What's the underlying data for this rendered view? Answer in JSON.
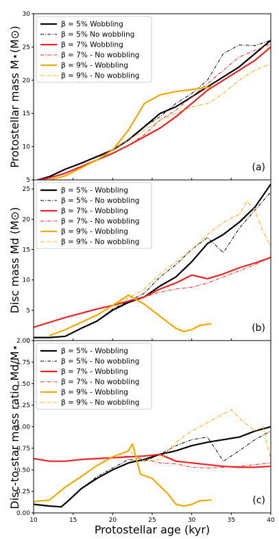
{
  "chart_data": [
    {
      "type": "line",
      "panel_label": "(a)",
      "ylabel": "Protostellar mass M⋆(M⊙)",
      "xlabel": "",
      "xlim": [
        10,
        40
      ],
      "ylim": [
        5,
        30
      ],
      "yticks": [
        "5",
        "10",
        "15",
        "20",
        "25",
        "30"
      ],
      "xticks": [],
      "legend": "top-left",
      "series": [
        {
          "name": "β = 5% Wobbling",
          "color": "#000000",
          "style": "solid",
          "width": 2.2,
          "x": [
            10,
            12,
            14,
            16,
            18,
            20,
            22,
            24,
            26,
            28,
            30,
            32,
            34,
            36,
            38,
            40
          ],
          "y": [
            4.8,
            5.5,
            6.6,
            7.5,
            8.5,
            9.5,
            11,
            13,
            15,
            16,
            17.5,
            19,
            20.5,
            22,
            24,
            26
          ]
        },
        {
          "name": "β = 5% No wobbling",
          "color": "#000000",
          "style": "dashdot",
          "width": 1.0,
          "x": [
            10,
            12,
            14,
            16,
            18,
            20,
            22,
            24,
            26,
            28,
            30,
            32,
            34,
            36,
            38,
            40
          ],
          "y": [
            4.8,
            5.5,
            6.6,
            7.5,
            8.4,
            9.4,
            11,
            13,
            14.5,
            16.5,
            18,
            20,
            24,
            25.3,
            25.2,
            26
          ]
        },
        {
          "name": "β = 7% Wobbling",
          "color": "#ee2222",
          "style": "solid",
          "width": 2.2,
          "x": [
            10,
            12,
            14,
            16,
            18,
            20,
            22,
            24,
            26,
            28,
            30,
            32,
            34,
            36,
            38,
            40
          ],
          "y": [
            4.8,
            5.3,
            6.0,
            7.0,
            8.0,
            9.0,
            10.2,
            11.5,
            12.8,
            14.5,
            16.5,
            18.5,
            20,
            21.5,
            23,
            25
          ]
        },
        {
          "name": "β = 7% - No wobbling",
          "color": "#ee2222",
          "style": "dashdot",
          "width": 1.0,
          "x": [
            10,
            12,
            14,
            16,
            18,
            20,
            22,
            24,
            26,
            28,
            30,
            32,
            34,
            36,
            38,
            40
          ],
          "y": [
            4.8,
            5.3,
            6.0,
            7.0,
            8.0,
            9.0,
            10.2,
            11.8,
            14,
            15.5,
            17.5,
            19.5,
            21.5,
            23.5,
            24.5,
            25.5
          ]
        },
        {
          "name": "β = 9% - Wobbling",
          "color": "#f5a800",
          "style": "solid",
          "width": 2.2,
          "x": [
            12,
            14,
            16,
            18,
            20,
            22,
            24,
            26,
            28,
            30,
            32,
            32.5
          ],
          "y": [
            5.0,
            5.6,
            6.8,
            8.0,
            9.5,
            12.5,
            16.5,
            17.8,
            18.3,
            18.6,
            18.9,
            19.0
          ]
        },
        {
          "name": "β = 9% - No wobbling",
          "color": "#f5a800",
          "style": "dashdot",
          "width": 1.0,
          "x": [
            12,
            14,
            16,
            18,
            20,
            22,
            24,
            26,
            28,
            30,
            32,
            34,
            36,
            38,
            40
          ],
          "y": [
            5.0,
            5.6,
            6.8,
            8.0,
            9.5,
            11,
            12.5,
            14,
            15,
            16,
            16.5,
            18,
            20,
            21.5,
            22.5
          ]
        }
      ]
    },
    {
      "type": "line",
      "panel_label": "(b)",
      "ylabel": "Disc mass Md (M⊙)",
      "xlabel": "",
      "xlim": [
        10,
        40
      ],
      "ylim": [
        0,
        26.5
      ],
      "yticks": [
        "0",
        "5",
        "10",
        "15",
        "20",
        "25"
      ],
      "xticks": [],
      "legend": "top-left",
      "series": [
        {
          "name": "β = 5% - Wobbling",
          "color": "#000000",
          "style": "solid",
          "width": 2.2,
          "x": [
            10,
            12,
            14,
            16,
            18,
            20,
            22,
            24,
            26,
            28,
            30,
            32,
            34,
            36,
            38,
            40
          ],
          "y": [
            0.5,
            0.5,
            0.7,
            2.0,
            3.2,
            5.0,
            6.3,
            7.2,
            9.0,
            10.5,
            13,
            16,
            17.5,
            19.5,
            22,
            25.8
          ]
        },
        {
          "name": "β = 5% - No wobbling",
          "color": "#000000",
          "style": "dashdot",
          "width": 1.0,
          "x": [
            10,
            12,
            14,
            16,
            18,
            20,
            22,
            24,
            26,
            28,
            30,
            32,
            34,
            36,
            38,
            40
          ],
          "y": [
            0.5,
            0.5,
            0.7,
            2.0,
            3.2,
            5.2,
            6.5,
            7.8,
            10.5,
            12.5,
            15,
            17,
            14.5,
            18.5,
            21.5,
            24.5
          ]
        },
        {
          "name": "β = 7% - Wobbling",
          "color": "#ee2222",
          "style": "solid",
          "width": 2.2,
          "x": [
            10,
            12,
            14,
            16,
            18,
            20,
            22,
            24,
            26,
            28,
            30,
            32,
            34,
            36,
            38,
            40
          ],
          "y": [
            2.2,
            3.0,
            3.8,
            4.5,
            5.2,
            5.8,
            6.5,
            7.2,
            8.5,
            9.5,
            10.8,
            10.2,
            11,
            12,
            12.8,
            13.7
          ]
        },
        {
          "name": "β = 7% - No wobbling",
          "color": "#ee2222",
          "style": "dashdot",
          "width": 1.0,
          "x": [
            10,
            12,
            14,
            16,
            18,
            20,
            22,
            24,
            26,
            28,
            30,
            32,
            34,
            36,
            38,
            40
          ],
          "y": [
            2.2,
            3.0,
            3.8,
            4.5,
            5.2,
            5.8,
            6.5,
            7.2,
            8.0,
            8.5,
            8.8,
            9.5,
            10.5,
            11.5,
            12.5,
            13.8
          ]
        },
        {
          "name": "β = 9% - Wobbling",
          "color": "#f5a800",
          "style": "solid",
          "width": 2.2,
          "x": [
            12,
            14,
            16,
            18,
            20,
            22,
            24,
            26,
            28,
            29,
            30,
            31,
            32.5
          ],
          "y": [
            0.8,
            1.8,
            3.0,
            4.2,
            5.8,
            7.5,
            6.0,
            4.0,
            2.0,
            1.5,
            1.8,
            2.5,
            2.8
          ]
        },
        {
          "name": "β = 9% - No wobbling",
          "color": "#f5a800",
          "style": "dashdot",
          "width": 1.0,
          "x": [
            12,
            14,
            16,
            18,
            20,
            22,
            24,
            26,
            28,
            30,
            32,
            34,
            36,
            37,
            38,
            39,
            40
          ],
          "y": [
            0.8,
            1.8,
            3.0,
            4.2,
            5.8,
            7.0,
            8.5,
            11,
            13,
            15,
            17.5,
            19.5,
            20.8,
            23,
            21.5,
            18,
            15.5
          ]
        }
      ]
    },
    {
      "type": "line",
      "panel_label": "(c)",
      "ylabel": "Disc-to-star mass ratio Md/M⋆",
      "xlabel": "Protostellar age (kyr)",
      "xlim": [
        10,
        40
      ],
      "ylim": [
        0,
        2.0
      ],
      "yticks": [
        "0.00",
        "0.25",
        "0.50",
        "0.75",
        "1.00",
        "1.25",
        "1.50",
        "1.75",
        "2.00"
      ],
      "xticks": [
        "10",
        "15",
        "20",
        "25",
        "30",
        "35",
        "40"
      ],
      "legend": "top-left",
      "series": [
        {
          "name": "β = 5% - Wobbling",
          "color": "#000000",
          "style": "solid",
          "width": 2.2,
          "x": [
            10,
            12,
            13.5,
            14.5,
            16,
            18,
            20,
            22,
            24,
            26,
            28,
            30,
            32,
            34,
            36,
            38,
            40
          ],
          "y": [
            0.1,
            0.08,
            0.07,
            0.15,
            0.28,
            0.4,
            0.5,
            0.58,
            0.62,
            0.68,
            0.72,
            0.78,
            0.82,
            0.85,
            0.88,
            0.95,
            1.0
          ]
        },
        {
          "name": "β = 5% - No wobbling",
          "color": "#000000",
          "style": "dashdot",
          "width": 1.0,
          "x": [
            10,
            12,
            13.5,
            14.5,
            16,
            18,
            20,
            22,
            24,
            26,
            28,
            30,
            32,
            34,
            36,
            38,
            40
          ],
          "y": [
            0.1,
            0.08,
            0.07,
            0.15,
            0.28,
            0.42,
            0.52,
            0.62,
            0.6,
            0.68,
            0.78,
            0.85,
            0.88,
            0.6,
            0.72,
            0.85,
            0.95
          ]
        },
        {
          "name": "β = 7% - Wobbling",
          "color": "#ee2222",
          "style": "solid",
          "width": 2.2,
          "x": [
            10,
            12,
            14,
            16,
            18,
            20,
            22,
            24,
            26,
            28,
            30,
            32,
            34,
            36,
            38,
            40
          ],
          "y": [
            0.63,
            0.6,
            0.6,
            0.62,
            0.63,
            0.64,
            0.65,
            0.66,
            0.68,
            0.6,
            0.58,
            0.56,
            0.54,
            0.53,
            0.53,
            0.54
          ]
        },
        {
          "name": "β = 7% - No wobbling",
          "color": "#ee2222",
          "style": "dashdot",
          "width": 1.0,
          "x": [
            10,
            12,
            14,
            16,
            18,
            20,
            22,
            24,
            26,
            28,
            30,
            32,
            34,
            36,
            38,
            40
          ],
          "y": [
            0.63,
            0.6,
            0.6,
            0.62,
            0.63,
            0.64,
            0.66,
            0.62,
            0.58,
            0.57,
            0.53,
            0.52,
            0.53,
            0.54,
            0.56,
            0.58
          ]
        },
        {
          "name": "β = 9% - Wobbling",
          "color": "#f5a800",
          "style": "solid",
          "width": 2.2,
          "x": [
            10,
            12,
            14,
            16,
            18,
            20,
            22,
            22.5,
            23.5,
            25,
            27,
            28,
            29,
            30,
            31,
            32.5
          ],
          "y": [
            0.13,
            0.15,
            0.3,
            0.42,
            0.55,
            0.65,
            0.72,
            0.8,
            0.45,
            0.4,
            0.22,
            0.1,
            0.08,
            0.1,
            0.14,
            0.15
          ]
        },
        {
          "name": "β = 9% - No wobbling",
          "color": "#f5a800",
          "style": "dashdot",
          "width": 1.0,
          "x": [
            10,
            12,
            14,
            16,
            18,
            20,
            22,
            24,
            26,
            28,
            30,
            32,
            34,
            35,
            36,
            38,
            39,
            40
          ],
          "y": [
            0.13,
            0.15,
            0.3,
            0.42,
            0.55,
            0.65,
            0.72,
            0.6,
            0.62,
            0.82,
            0.95,
            1.05,
            1.15,
            1.2,
            1.1,
            0.95,
            1.0,
            0.62
          ]
        }
      ]
    }
  ]
}
